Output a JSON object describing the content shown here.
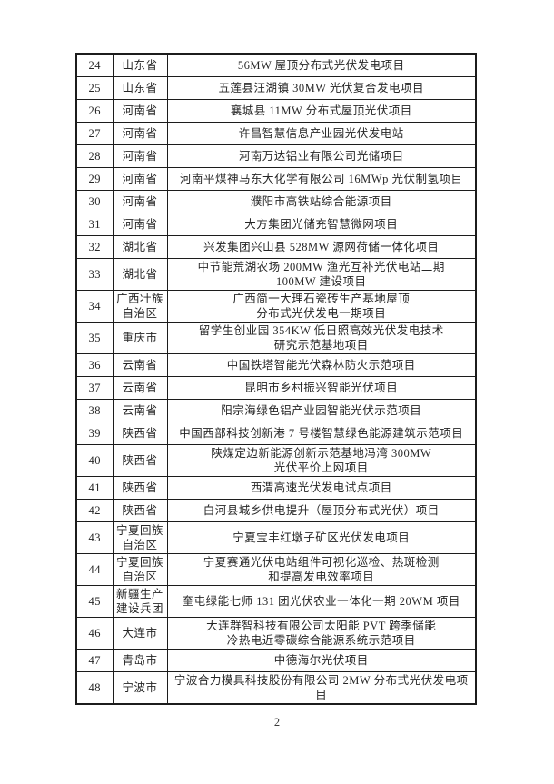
{
  "page_number": "2",
  "table": {
    "rows": [
      {
        "no": "24",
        "region": "山东省",
        "project": "56MW 屋顶分布式光伏发电项目"
      },
      {
        "no": "25",
        "region": "山东省",
        "project": "五莲县汪湖镇 30MW 光伏复合发电项目"
      },
      {
        "no": "26",
        "region": "河南省",
        "project": "襄城县 11MW 分布式屋顶光伏项目"
      },
      {
        "no": "27",
        "region": "河南省",
        "project": "许昌智慧信息产业园光伏发电站"
      },
      {
        "no": "28",
        "region": "河南省",
        "project": "河南万达铝业有限公司光储项目"
      },
      {
        "no": "29",
        "region": "河南省",
        "project": "河南平煤神马东大化学有限公司 16MWp 光伏制氢项目"
      },
      {
        "no": "30",
        "region": "河南省",
        "project": "濮阳市高铁站综合能源项目"
      },
      {
        "no": "31",
        "region": "河南省",
        "project": "大方集团光储充智慧微网项目"
      },
      {
        "no": "32",
        "region": "湖北省",
        "project": "兴发集团兴山县 528MW 源网荷储一体化项目"
      },
      {
        "no": "33",
        "region": "湖北省",
        "project": "中节能荒湖农场 200MW 渔光互补光伏电站二期\n100MW 建设项目"
      },
      {
        "no": "34",
        "region": "广西壮族\n自治区",
        "project": "广西简一大理石瓷砖生产基地屋顶\n分布式光伏发电一期项目"
      },
      {
        "no": "35",
        "region": "重庆市",
        "project": "留学生创业园 354KW 低日照高效光伏发电技术\n研究示范基地项目"
      },
      {
        "no": "36",
        "region": "云南省",
        "project": "中国铁塔智能光伏森林防火示范项目"
      },
      {
        "no": "37",
        "region": "云南省",
        "project": "昆明市乡村振兴智能光伏项目"
      },
      {
        "no": "38",
        "region": "云南省",
        "project": "阳宗海绿色铝产业园智能光伏示范项目"
      },
      {
        "no": "39",
        "region": "陕西省",
        "project": "中国西部科技创新港 7 号楼智慧绿色能源建筑示范项目"
      },
      {
        "no": "40",
        "region": "陕西省",
        "project": "陕煤定边新能源创新示范基地冯湾 300MW\n光伏平价上网项目"
      },
      {
        "no": "41",
        "region": "陕西省",
        "project": "西渭高速光伏发电试点项目"
      },
      {
        "no": "42",
        "region": "陕西省",
        "project": "白河县城乡供电提升（屋顶分布式光伏）项目"
      },
      {
        "no": "43",
        "region": "宁夏回族\n自治区",
        "project": "宁夏宝丰红墩子矿区光伏发电项目"
      },
      {
        "no": "44",
        "region": "宁夏回族\n自治区",
        "project": "宁夏赛通光伏电站组件可视化巡检、热斑检测\n和提高发电效率项目"
      },
      {
        "no": "45",
        "region": "新疆生产\n建设兵团",
        "project": "奎屯绿能七师 131 团光伏农业一体化一期 20WM 项目"
      },
      {
        "no": "46",
        "region": "大连市",
        "project": "大连群智科技有限公司太阳能 PVT 跨季储能\n冷热电近零碳综合能源系统示范项目"
      },
      {
        "no": "47",
        "region": "青岛市",
        "project": "中德海尔光伏项目"
      },
      {
        "no": "48",
        "region": "宁波市",
        "project": "宁波合力模具科技股份有限公司 2MW 分布式光伏发电项目"
      }
    ]
  }
}
